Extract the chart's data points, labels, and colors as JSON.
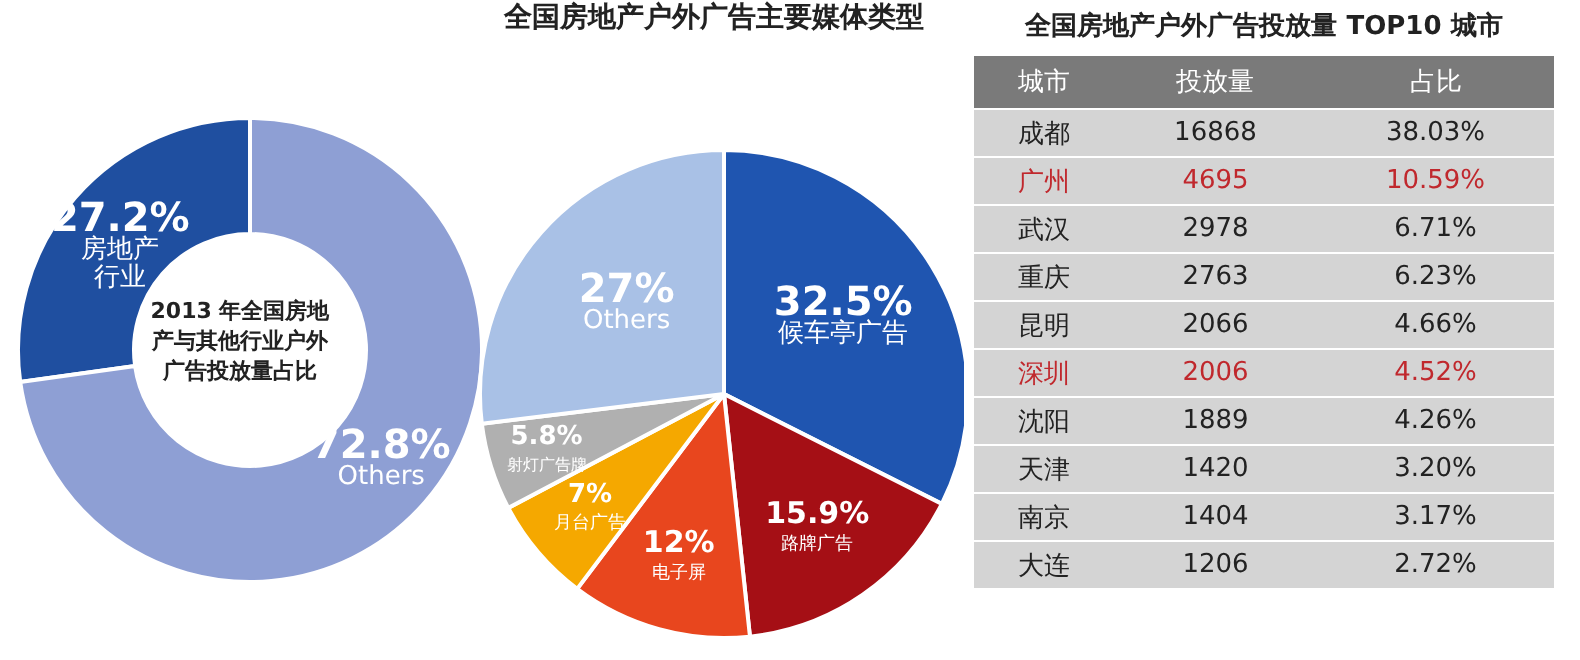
{
  "chart_data": [
    {
      "type": "donut",
      "title": "2013 年全国房地产与其他行业户外广告投放量占比",
      "categories": [
        "房地产行业",
        "Others"
      ],
      "values": [
        27.2,
        72.8
      ],
      "value_labels": [
        "27.2%",
        "72.8%"
      ],
      "colors": [
        "#1f4fa0",
        "#8e9fd4"
      ],
      "legend": false
    },
    {
      "type": "pie",
      "title": "全国房地产户外广告主要媒体类型",
      "categories": [
        "候车亭广告",
        "路牌广告",
        "电子屏",
        "月台广告",
        "射灯广告牌",
        "Others"
      ],
      "values": [
        32.5,
        15.9,
        12,
        7,
        5.8,
        27
      ],
      "value_labels": [
        "32.5%",
        "15.9%",
        "12%",
        "7%",
        "5.8%",
        "27%"
      ],
      "colors": [
        "#1f55b0",
        "#a50f15",
        "#e8461e",
        "#f5a800",
        "#b0b0b0",
        "#a9c1e6"
      ],
      "legend": false
    },
    {
      "type": "other",
      "data_labels": true,
      "title": "全国房地产户外广告投放量 TOP10 城市",
      "xlabel": "城市",
      "categories": [
        "成都",
        "广州",
        "武汉",
        "重庆",
        "昆明",
        "深圳",
        "沈阳",
        "天津",
        "南京",
        "大连"
      ],
      "colors": [
        "#222222",
        "#c0282d",
        "#222222",
        "#222222",
        "#222222",
        "#c0282d",
        "#222222",
        "#222222",
        "#222222",
        "#222222"
      ],
      "series": [
        {
          "name": "投放量",
          "values": [
            16868,
            4695,
            2978,
            2763,
            2066,
            2006,
            1889,
            1420,
            1404,
            1206
          ]
        },
        {
          "name": "占比",
          "values": [
            38.03,
            10.59,
            6.71,
            6.23,
            4.66,
            4.52,
            4.26,
            3.2,
            3.17,
            2.72
          ],
          "value_labels": [
            "38.03%",
            "10.59%",
            "6.71%",
            "6.23%",
            "4.66%",
            "4.52%",
            "4.26%",
            "3.20%",
            "3.17%",
            "2.72%"
          ]
        }
      ]
    }
  ]
}
